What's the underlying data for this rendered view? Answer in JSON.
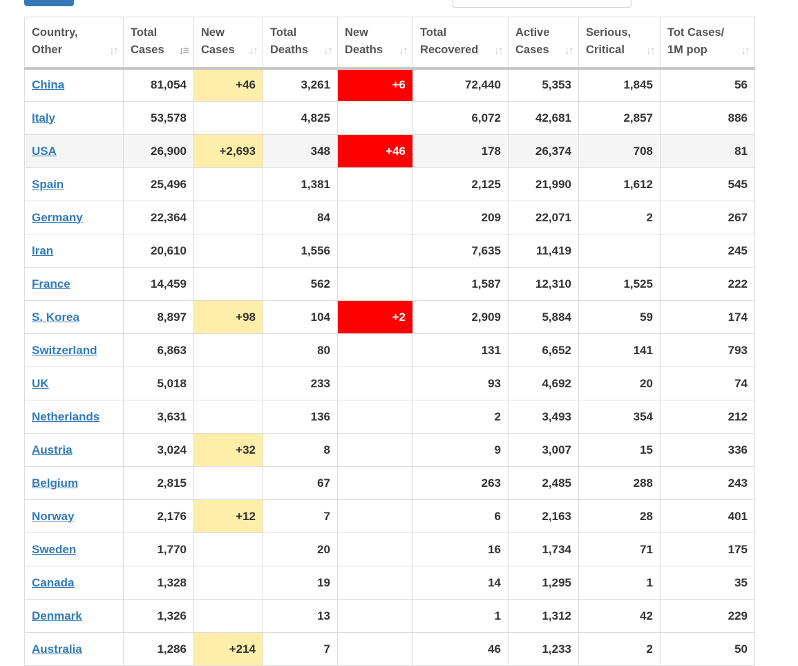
{
  "columns": [
    {
      "line1": "Country,",
      "line2": "Other",
      "sort": "↓↑",
      "active": false
    },
    {
      "line1": "Total",
      "line2": "Cases",
      "sort": "↓≡",
      "active": true
    },
    {
      "line1": "New",
      "line2": "Cases",
      "sort": "↓↑",
      "active": false
    },
    {
      "line1": "Total",
      "line2": "Deaths",
      "sort": "↓↑",
      "active": false
    },
    {
      "line1": "New",
      "line2": "Deaths",
      "sort": "↓↑",
      "active": false
    },
    {
      "line1": "Total",
      "line2": "Recovered",
      "sort": "↓↑",
      "active": false
    },
    {
      "line1": "Active",
      "line2": "Cases",
      "sort": "↓↑",
      "active": false
    },
    {
      "line1": "Serious,",
      "line2": "Critical",
      "sort": "↓↑",
      "active": false
    },
    {
      "line1": "Tot Cases/",
      "line2": "1M pop",
      "sort": "↓↑",
      "active": false
    }
  ],
  "rows": [
    {
      "country": "China",
      "total_cases": "81,054",
      "new_cases": "+46",
      "total_deaths": "3,261",
      "new_deaths": "+6",
      "total_recovered": "72,440",
      "active_cases": "5,353",
      "serious_critical": "1,845",
      "per_million": "56",
      "alt": false
    },
    {
      "country": "Italy",
      "total_cases": "53,578",
      "new_cases": "",
      "total_deaths": "4,825",
      "new_deaths": "",
      "total_recovered": "6,072",
      "active_cases": "42,681",
      "serious_critical": "2,857",
      "per_million": "886",
      "alt": false
    },
    {
      "country": "USA",
      "total_cases": "26,900",
      "new_cases": "+2,693",
      "total_deaths": "348",
      "new_deaths": "+46",
      "total_recovered": "178",
      "active_cases": "26,374",
      "serious_critical": "708",
      "per_million": "81",
      "alt": true
    },
    {
      "country": "Spain",
      "total_cases": "25,496",
      "new_cases": "",
      "total_deaths": "1,381",
      "new_deaths": "",
      "total_recovered": "2,125",
      "active_cases": "21,990",
      "serious_critical": "1,612",
      "per_million": "545",
      "alt": false
    },
    {
      "country": "Germany",
      "total_cases": "22,364",
      "new_cases": "",
      "total_deaths": "84",
      "new_deaths": "",
      "total_recovered": "209",
      "active_cases": "22,071",
      "serious_critical": "2",
      "per_million": "267",
      "alt": false
    },
    {
      "country": "Iran",
      "total_cases": "20,610",
      "new_cases": "",
      "total_deaths": "1,556",
      "new_deaths": "",
      "total_recovered": "7,635",
      "active_cases": "11,419",
      "serious_critical": "",
      "per_million": "245",
      "alt": false
    },
    {
      "country": "France",
      "total_cases": "14,459",
      "new_cases": "",
      "total_deaths": "562",
      "new_deaths": "",
      "total_recovered": "1,587",
      "active_cases": "12,310",
      "serious_critical": "1,525",
      "per_million": "222",
      "alt": false
    },
    {
      "country": "S. Korea",
      "total_cases": "8,897",
      "new_cases": "+98",
      "total_deaths": "104",
      "new_deaths": "+2",
      "total_recovered": "2,909",
      "active_cases": "5,884",
      "serious_critical": "59",
      "per_million": "174",
      "alt": false
    },
    {
      "country": "Switzerland",
      "total_cases": "6,863",
      "new_cases": "",
      "total_deaths": "80",
      "new_deaths": "",
      "total_recovered": "131",
      "active_cases": "6,652",
      "serious_critical": "141",
      "per_million": "793",
      "alt": false
    },
    {
      "country": "UK",
      "total_cases": "5,018",
      "new_cases": "",
      "total_deaths": "233",
      "new_deaths": "",
      "total_recovered": "93",
      "active_cases": "4,692",
      "serious_critical": "20",
      "per_million": "74",
      "alt": false
    },
    {
      "country": "Netherlands",
      "total_cases": "3,631",
      "new_cases": "",
      "total_deaths": "136",
      "new_deaths": "",
      "total_recovered": "2",
      "active_cases": "3,493",
      "serious_critical": "354",
      "per_million": "212",
      "alt": false
    },
    {
      "country": "Austria",
      "total_cases": "3,024",
      "new_cases": "+32",
      "total_deaths": "8",
      "new_deaths": "",
      "total_recovered": "9",
      "active_cases": "3,007",
      "serious_critical": "15",
      "per_million": "336",
      "alt": false
    },
    {
      "country": "Belgium",
      "total_cases": "2,815",
      "new_cases": "",
      "total_deaths": "67",
      "new_deaths": "",
      "total_recovered": "263",
      "active_cases": "2,485",
      "serious_critical": "288",
      "per_million": "243",
      "alt": false
    },
    {
      "country": "Norway",
      "total_cases": "2,176",
      "new_cases": "+12",
      "total_deaths": "7",
      "new_deaths": "",
      "total_recovered": "6",
      "active_cases": "2,163",
      "serious_critical": "28",
      "per_million": "401",
      "alt": false
    },
    {
      "country": "Sweden",
      "total_cases": "1,770",
      "new_cases": "",
      "total_deaths": "20",
      "new_deaths": "",
      "total_recovered": "16",
      "active_cases": "1,734",
      "serious_critical": "71",
      "per_million": "175",
      "alt": false
    },
    {
      "country": "Canada",
      "total_cases": "1,328",
      "new_cases": "",
      "total_deaths": "19",
      "new_deaths": "",
      "total_recovered": "14",
      "active_cases": "1,295",
      "serious_critical": "1",
      "per_million": "35",
      "alt": false
    },
    {
      "country": "Denmark",
      "total_cases": "1,326",
      "new_cases": "",
      "total_deaths": "13",
      "new_deaths": "",
      "total_recovered": "1",
      "active_cases": "1,312",
      "serious_critical": "42",
      "per_million": "229",
      "alt": false
    },
    {
      "country": "Australia",
      "total_cases": "1,286",
      "new_cases": "+214",
      "total_deaths": "7",
      "new_deaths": "",
      "total_recovered": "46",
      "active_cases": "1,233",
      "serious_critical": "2",
      "per_million": "50",
      "alt": false
    }
  ],
  "colors": {
    "link": "#337ab7",
    "new_cases_highlight": "#ffeeaa",
    "new_deaths_highlight": "#ff0000",
    "header_text": "#555"
  }
}
